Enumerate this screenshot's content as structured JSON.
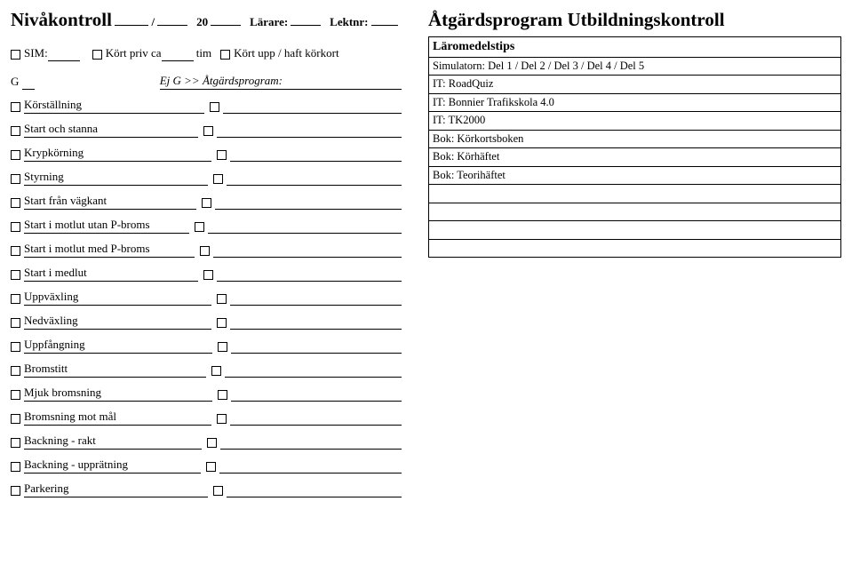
{
  "left": {
    "title": "Nivåkontroll",
    "header_parts": {
      "slash": "/",
      "year_prefix": "20",
      "larare": "Lärare:",
      "lektnr": "Lektnr:"
    },
    "sim_row": {
      "sim": "SIM:",
      "kort_priv": "Kört priv ca",
      "tim": "tim",
      "kort_upp": "Kört upp / haft körkort"
    },
    "g_row": {
      "g": "G",
      "ej_g": "Ej G >> Åtgärdsprogram:"
    },
    "items": [
      "Körställning",
      "Start och stanna",
      "Krypkörning",
      "Styrning",
      "Start från vägkant",
      "Start i motlut utan P-broms",
      "Start i motlut med P-broms",
      "Start i medlut",
      "Uppväxling",
      "Nedväxling",
      "Uppfångning",
      "Bromstitt",
      "Mjuk bromsning",
      "Bromsning mot mål",
      "Backning - rakt",
      "Backning - upprätning",
      "Parkering"
    ]
  },
  "right": {
    "title": "Åtgärdsprogram Utbildningskontroll",
    "tips_header": "Läromedelstips",
    "rows": [
      "Simulatorn: Del 1 / Del 2 / Del 3 / Del 4 / Del 5",
      "IT: RoadQuiz",
      "IT: Bonnier Trafikskola 4.0",
      "IT: TK2000",
      "Bok: Körkortsboken",
      "Bok: Körhäftet",
      "Bok: Teorihäftet",
      "",
      "",
      "",
      ""
    ]
  }
}
